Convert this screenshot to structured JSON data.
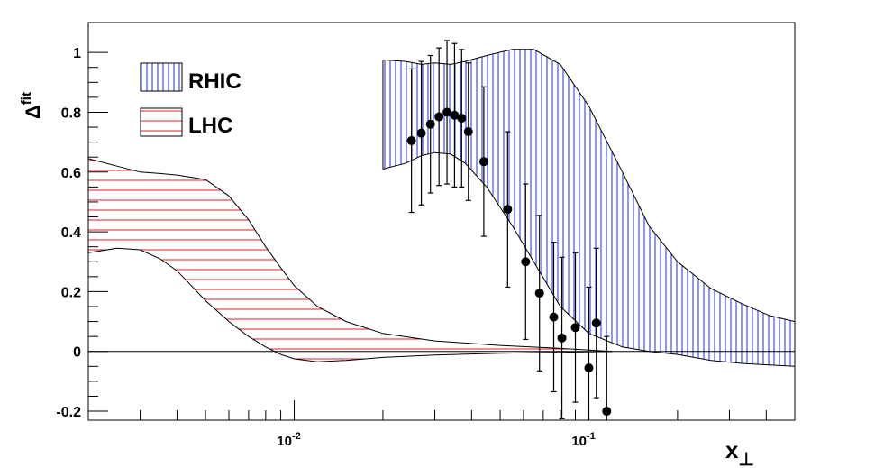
{
  "chart_data": {
    "type": "scatter",
    "xscale": "log",
    "xlim": [
      0.002,
      0.5
    ],
    "ylim": [
      -0.23,
      1.1
    ],
    "xlabel_main": "x",
    "xlabel_sub": "⊥",
    "ylabel_main": "Δ",
    "ylabel_sup": "fit",
    "x_tick_labels": [
      {
        "value": 0.01,
        "base": "10",
        "exp": "-2"
      },
      {
        "value": 0.1,
        "base": "10",
        "exp": "-1"
      }
    ],
    "y_ticks": [
      -0.2,
      0,
      0.2,
      0.4,
      0.6,
      0.8,
      1
    ],
    "y_tick_labels": [
      "-0.2",
      "0",
      "0.2",
      "0.4",
      "0.6",
      "0.8",
      "1"
    ],
    "zero_line": 0,
    "legend": {
      "placement": "top-left",
      "entries": [
        {
          "name": "RHIC",
          "hatch": "vertical",
          "color": "#1f2fd6"
        },
        {
          "name": "LHC",
          "hatch": "horizontal",
          "color": "#e0202a"
        }
      ]
    },
    "bands": [
      {
        "name": "RHIC",
        "hatch": "vertical",
        "color": "#1f2fd6",
        "x": [
          0.02,
          0.024,
          0.027,
          0.03,
          0.034,
          0.038,
          0.045,
          0.055,
          0.065,
          0.08,
          0.1,
          0.13,
          0.16,
          0.2,
          0.26,
          0.33,
          0.41,
          0.5
        ],
        "upper": [
          0.975,
          0.97,
          0.96,
          0.965,
          0.96,
          0.97,
          0.99,
          1.01,
          1.01,
          0.96,
          0.82,
          0.6,
          0.42,
          0.3,
          0.21,
          0.16,
          0.12,
          0.1
        ],
        "lower": [
          0.61,
          0.63,
          0.655,
          0.665,
          0.66,
          0.63,
          0.55,
          0.42,
          0.3,
          0.15,
          0.06,
          0.015,
          0.0,
          -0.01,
          -0.03,
          -0.04,
          -0.045,
          -0.05
        ]
      },
      {
        "name": "LHC",
        "hatch": "horizontal",
        "color": "#e0202a",
        "x": [
          0.002,
          0.0025,
          0.003,
          0.0035,
          0.004,
          0.005,
          0.006,
          0.007,
          0.008,
          0.009,
          0.01,
          0.012,
          0.015,
          0.02,
          0.03,
          0.05,
          0.08,
          0.12
        ],
        "upper": [
          0.645,
          0.62,
          0.6,
          0.595,
          0.59,
          0.575,
          0.52,
          0.44,
          0.35,
          0.28,
          0.22,
          0.15,
          0.1,
          0.06,
          0.035,
          0.02,
          0.01,
          0.0
        ],
        "lower": [
          0.33,
          0.345,
          0.34,
          0.31,
          0.27,
          0.17,
          0.1,
          0.05,
          0.015,
          -0.01,
          -0.025,
          -0.035,
          -0.03,
          -0.02,
          -0.012,
          -0.006,
          -0.003,
          0.0
        ]
      }
    ],
    "series": [
      {
        "type": "scatter_errorbars",
        "x": [
          0.025,
          0.027,
          0.029,
          0.031,
          0.033,
          0.035,
          0.037,
          0.039,
          0.044,
          0.053,
          0.061,
          0.068,
          0.076,
          0.081,
          0.09,
          0.1,
          0.106,
          0.115
        ],
        "y": [
          0.705,
          0.73,
          0.76,
          0.785,
          0.8,
          0.79,
          0.78,
          0.735,
          0.635,
          0.475,
          0.3,
          0.195,
          0.115,
          0.045,
          0.08,
          -0.055,
          0.095,
          -0.2
        ],
        "err": [
          0.24,
          0.24,
          0.23,
          0.23,
          0.24,
          0.24,
          0.23,
          0.23,
          0.25,
          0.26,
          0.26,
          0.26,
          0.25,
          0.27,
          0.25,
          0.27,
          0.25,
          0.25
        ]
      }
    ]
  }
}
